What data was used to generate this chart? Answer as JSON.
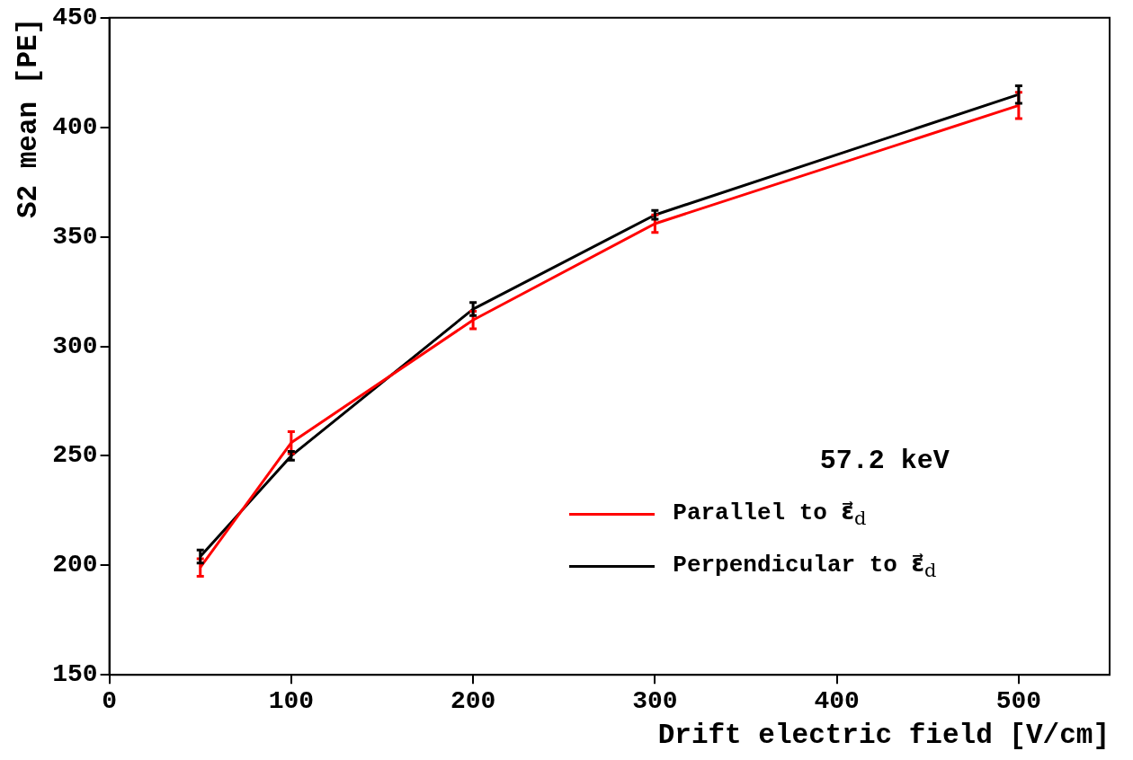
{
  "chart_data": {
    "type": "line",
    "xlabel": "Drift electric field [V/cm]",
    "ylabel": "S2 mean [PE]",
    "x": [
      50,
      100,
      200,
      300,
      500
    ],
    "series": [
      {
        "name": "Parallel to ε⃗$_{d}$",
        "color": "#ff0000",
        "values": [
          199,
          256,
          312,
          356,
          410
        ],
        "errors": [
          4,
          5,
          4,
          4,
          6
        ]
      },
      {
        "name": "Perpendicular to ε⃗$_{d}$",
        "color": "#000000",
        "values": [
          204,
          250,
          317,
          360,
          415
        ],
        "errors": [
          3,
          2,
          3,
          2,
          4
        ]
      }
    ],
    "xlim": [
      0,
      550
    ],
    "xticks": [
      0,
      100,
      200,
      300,
      400,
      500
    ],
    "ylim": [
      150,
      450
    ],
    "yticks": [
      150,
      200,
      250,
      300,
      350,
      400,
      450
    ],
    "grid": false,
    "legend": "bottom right",
    "marker": "none",
    "line_style": "solid",
    "annotations": [
      "57.2 keV"
    ]
  }
}
